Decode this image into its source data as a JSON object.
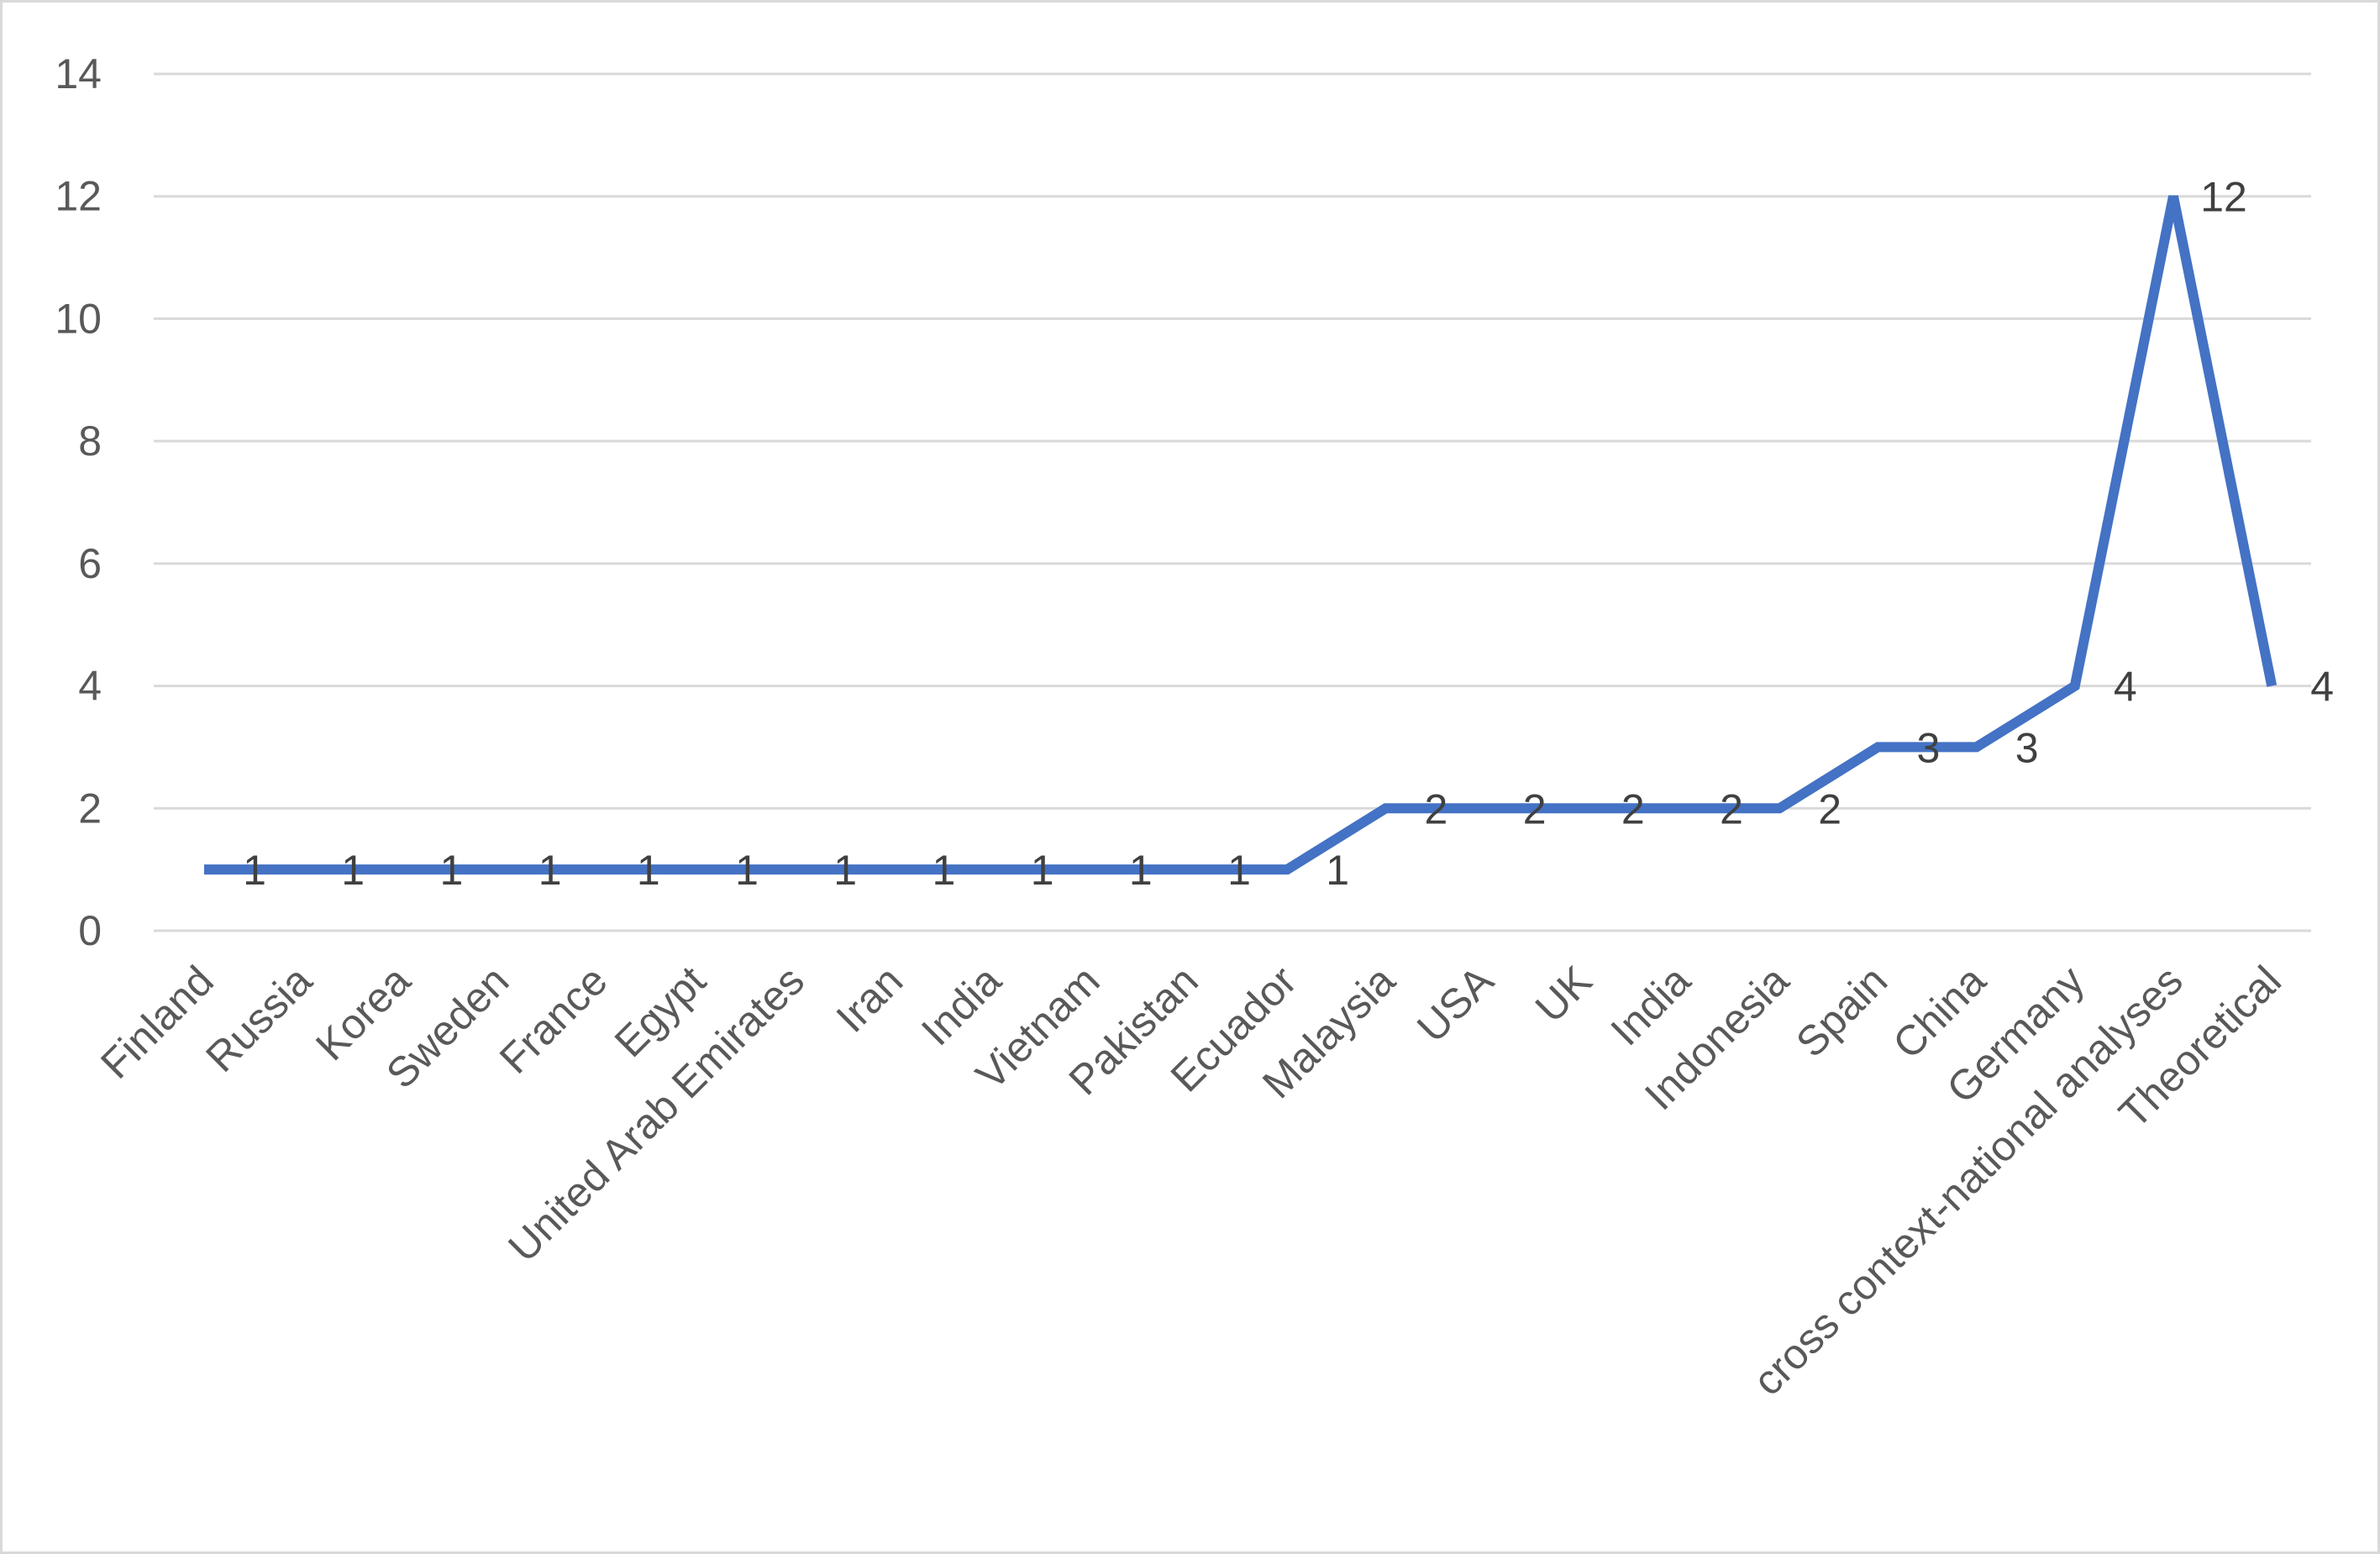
{
  "chart_data": {
    "type": "line",
    "title": "",
    "xlabel": "",
    "ylabel": "",
    "ylim": [
      0,
      14
    ],
    "yticks": [
      0,
      2,
      4,
      6,
      8,
      10,
      12,
      14
    ],
    "grid": true,
    "legend": "none",
    "categories": [
      "Finland",
      "Russia",
      "Korea",
      "Sweden",
      "France",
      "Egypt",
      "United Arab Emirates",
      "Iran",
      "India",
      "Vietnam",
      "Pakistan",
      "Ecuador",
      "Malaysia",
      "USA",
      "UK",
      "India",
      "Indonesia",
      "Spain",
      "China",
      "Germany",
      "cross context-national analyses",
      "Theoretical"
    ],
    "series": [
      {
        "values": [
          1,
          1,
          1,
          1,
          1,
          1,
          1,
          1,
          1,
          1,
          1,
          1,
          2,
          2,
          2,
          2,
          2,
          3,
          3,
          4,
          12,
          4
        ],
        "color": "#4472c4"
      }
    ],
    "data_labels": [
      "1",
      "1",
      "1",
      "1",
      "1",
      "1",
      "1",
      "1",
      "1",
      "1",
      "1",
      "1",
      "2",
      "2",
      "2",
      "2",
      "2",
      "3",
      "3",
      "4",
      "12",
      "4"
    ],
    "colors": {
      "line": "#4472c4",
      "grid": "#d9d9d9",
      "tick_text": "#595959",
      "label_text": "#404040",
      "border": "#d9d9d9"
    }
  }
}
